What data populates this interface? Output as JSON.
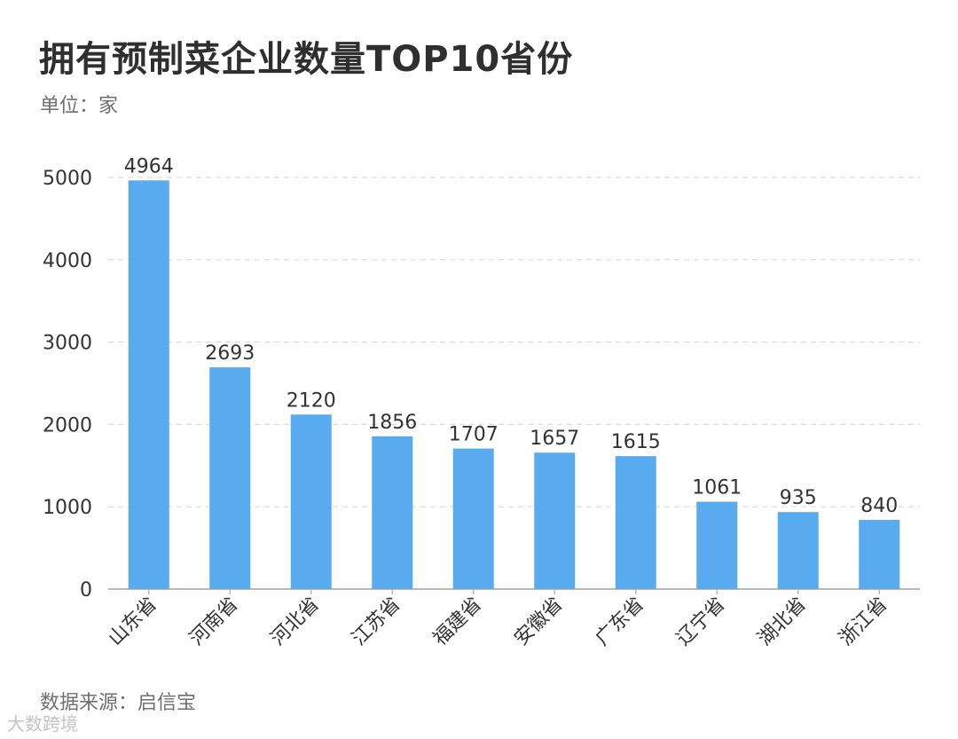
{
  "header": {
    "title": "拥有预制菜企业数量TOP10省份",
    "unit": "单位：家"
  },
  "footer": {
    "source": "数据来源：启信宝",
    "watermark": "大数跨境"
  },
  "colors": {
    "bar": "#57abee",
    "grid": "#dcdcdc",
    "axis": "#b9b9b9",
    "text": "#333333"
  },
  "chart_data": {
    "type": "bar",
    "categories": [
      "山东省",
      "河南省",
      "河北省",
      "江苏省",
      "福建省",
      "安徽省",
      "广东省",
      "辽宁省",
      "湖北省",
      "浙江省"
    ],
    "values": [
      4964,
      2693,
      2120,
      1856,
      1707,
      1657,
      1615,
      1061,
      935,
      840
    ],
    "ylim": [
      0,
      5000
    ],
    "yticks": [
      0,
      1000,
      2000,
      3000,
      4000,
      5000
    ],
    "grid": true,
    "data_labels": true
  }
}
